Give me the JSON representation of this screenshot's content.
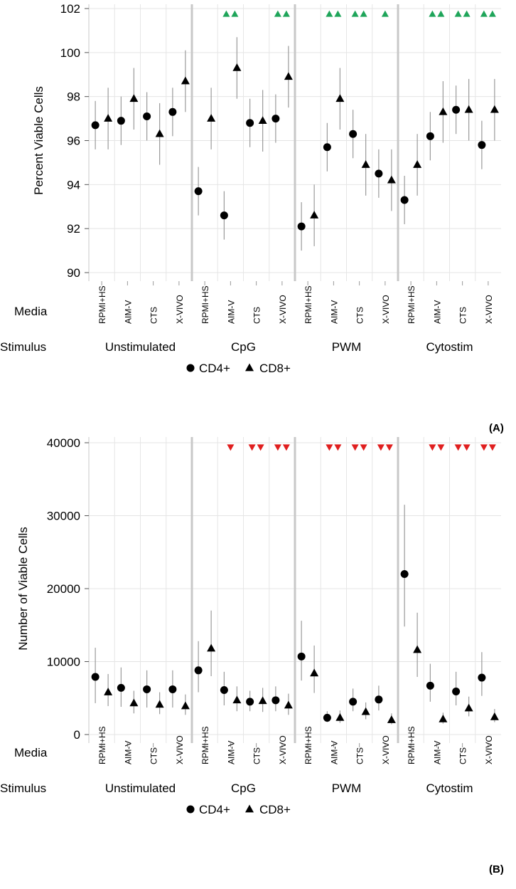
{
  "chart_data": [
    {
      "type": "scatter",
      "panel_label": "(A)",
      "ylabel": "Percent Viable Cells",
      "ylim": [
        90,
        102
      ],
      "yticks": [
        90,
        92,
        94,
        96,
        98,
        100,
        102
      ],
      "row_labels": {
        "media": "Media",
        "stimulus": "Stimulus"
      },
      "groups": [
        "Unstimulated",
        "CpG",
        "PWM",
        "Cytostim"
      ],
      "media": [
        "RPMI+HS",
        "AIM-V",
        "CTS",
        "X-VIVO"
      ],
      "legend": {
        "cd4": "CD4+",
        "cd8": "CD8+"
      },
      "series": [
        {
          "name": "CD4+",
          "marker": "circle",
          "points": [
            {
              "group": "Unstimulated",
              "media": "RPMI+HS",
              "y": 96.7,
              "err": [
                95.6,
                97.8
              ]
            },
            {
              "group": "Unstimulated",
              "media": "AIM-V",
              "y": 96.9,
              "err": [
                95.8,
                98.0
              ]
            },
            {
              "group": "Unstimulated",
              "media": "CTS",
              "y": 97.1,
              "err": [
                96.0,
                98.2
              ]
            },
            {
              "group": "Unstimulated",
              "media": "X-VIVO",
              "y": 97.3,
              "err": [
                96.2,
                98.4
              ]
            },
            {
              "group": "CpG",
              "media": "RPMI+HS",
              "y": 93.7,
              "err": [
                92.6,
                94.8
              ]
            },
            {
              "group": "CpG",
              "media": "AIM-V",
              "y": 92.6,
              "err": [
                91.5,
                93.7
              ]
            },
            {
              "group": "CpG",
              "media": "CTS",
              "y": 96.8,
              "err": [
                95.7,
                97.9
              ]
            },
            {
              "group": "CpG",
              "media": "X-VIVO",
              "y": 97.0,
              "err": [
                95.9,
                98.1
              ]
            },
            {
              "group": "PWM",
              "media": "RPMI+HS",
              "y": 92.1,
              "err": [
                91.0,
                93.2
              ]
            },
            {
              "group": "PWM",
              "media": "AIM-V",
              "y": 95.7,
              "err": [
                94.6,
                96.8
              ]
            },
            {
              "group": "PWM",
              "media": "CTS",
              "y": 96.3,
              "err": [
                95.2,
                97.4
              ]
            },
            {
              "group": "PWM",
              "media": "X-VIVO",
              "y": 94.5,
              "err": [
                93.4,
                95.6
              ]
            },
            {
              "group": "Cytostim",
              "media": "RPMI+HS",
              "y": 93.3,
              "err": [
                92.2,
                94.4
              ]
            },
            {
              "group": "Cytostim",
              "media": "AIM-V",
              "y": 96.2,
              "err": [
                95.1,
                97.3
              ]
            },
            {
              "group": "Cytostim",
              "media": "CTS",
              "y": 97.4,
              "err": [
                96.3,
                98.5
              ]
            },
            {
              "group": "Cytostim",
              "media": "X-VIVO",
              "y": 95.8,
              "err": [
                94.7,
                96.9
              ]
            }
          ]
        },
        {
          "name": "CD8+",
          "marker": "triangle",
          "points": [
            {
              "group": "Unstimulated",
              "media": "RPMI+HS",
              "y": 97.0,
              "err": [
                95.6,
                98.4
              ]
            },
            {
              "group": "Unstimulated",
              "media": "AIM-V",
              "y": 97.9,
              "err": [
                96.5,
                99.3
              ]
            },
            {
              "group": "Unstimulated",
              "media": "CTS",
              "y": 96.3,
              "err": [
                94.9,
                97.7
              ]
            },
            {
              "group": "Unstimulated",
              "media": "X-VIVO",
              "y": 98.7,
              "err": [
                97.3,
                100.1
              ]
            },
            {
              "group": "CpG",
              "media": "RPMI+HS",
              "y": 97.0,
              "err": [
                95.6,
                98.4
              ]
            },
            {
              "group": "CpG",
              "media": "AIM-V",
              "y": 99.3,
              "err": [
                97.9,
                100.7
              ]
            },
            {
              "group": "CpG",
              "media": "CTS",
              "y": 96.9,
              "err": [
                95.5,
                98.3
              ]
            },
            {
              "group": "CpG",
              "media": "X-VIVO",
              "y": 98.9,
              "err": [
                97.5,
                100.3
              ]
            },
            {
              "group": "PWM",
              "media": "RPMI+HS",
              "y": 92.6,
              "err": [
                91.2,
                94.0
              ]
            },
            {
              "group": "PWM",
              "media": "AIM-V",
              "y": 97.9,
              "err": [
                96.5,
                99.3
              ]
            },
            {
              "group": "PWM",
              "media": "CTS",
              "y": 94.9,
              "err": [
                93.5,
                96.3
              ]
            },
            {
              "group": "PWM",
              "media": "X-VIVO",
              "y": 94.2,
              "err": [
                92.8,
                95.6
              ]
            },
            {
              "group": "Cytostim",
              "media": "RPMI+HS",
              "y": 94.9,
              "err": [
                93.5,
                96.3
              ]
            },
            {
              "group": "Cytostim",
              "media": "AIM-V",
              "y": 97.3,
              "err": [
                95.9,
                98.7
              ]
            },
            {
              "group": "Cytostim",
              "media": "CTS",
              "y": 97.4,
              "err": [
                96.0,
                98.8
              ]
            },
            {
              "group": "Cytostim",
              "media": "X-VIVO",
              "y": 97.4,
              "err": [
                96.0,
                98.8
              ]
            }
          ]
        }
      ],
      "significance_markers": {
        "symbol": "up-triangle",
        "color": "#1fa55a",
        "items": [
          {
            "group": "CpG",
            "media": "AIM-V",
            "count": 2
          },
          {
            "group": "CpG",
            "media": "X-VIVO",
            "count": 2
          },
          {
            "group": "PWM",
            "media": "AIM-V",
            "count": 2
          },
          {
            "group": "PWM",
            "media": "CTS",
            "count": 2
          },
          {
            "group": "PWM",
            "media": "X-VIVO",
            "count": 1
          },
          {
            "group": "Cytostim",
            "media": "AIM-V",
            "count": 2
          },
          {
            "group": "Cytostim",
            "media": "CTS",
            "count": 2
          },
          {
            "group": "Cytostim",
            "media": "X-VIVO",
            "count": 2
          }
        ]
      }
    },
    {
      "type": "scatter",
      "panel_label": "(B)",
      "ylabel": "Number of Viable Cells",
      "ylim": [
        0,
        40000
      ],
      "yticks": [
        0,
        10000,
        20000,
        30000,
        40000
      ],
      "row_labels": {
        "media": "Media",
        "stimulus": "Stimulus"
      },
      "groups": [
        "Unstimulated",
        "CpG",
        "PWM",
        "Cytostim"
      ],
      "media": [
        "RPMI+HS",
        "AIM-V",
        "CTS",
        "X-VIVO"
      ],
      "legend": {
        "cd4": "CD4+",
        "cd8": "CD8+"
      },
      "series": [
        {
          "name": "CD4+",
          "marker": "circle",
          "points": [
            {
              "group": "Unstimulated",
              "media": "RPMI+HS",
              "y": 7900,
              "err": [
                4300,
                11900
              ]
            },
            {
              "group": "Unstimulated",
              "media": "AIM-V",
              "y": 6400,
              "err": [
                3800,
                9200
              ]
            },
            {
              "group": "Unstimulated",
              "media": "CTS",
              "y": 6200,
              "err": [
                3700,
                8800
              ]
            },
            {
              "group": "Unstimulated",
              "media": "X-VIVO",
              "y": 6200,
              "err": [
                3700,
                8800
              ]
            },
            {
              "group": "CpG",
              "media": "RPMI+HS",
              "y": 8800,
              "err": [
                5800,
                12800
              ]
            },
            {
              "group": "CpG",
              "media": "AIM-V",
              "y": 6100,
              "err": [
                4000,
                8600
              ]
            },
            {
              "group": "CpG",
              "media": "CTS",
              "y": 4500,
              "err": [
                3200,
                6000
              ]
            },
            {
              "group": "CpG",
              "media": "X-VIVO",
              "y": 4700,
              "err": [
                3200,
                6600
              ]
            },
            {
              "group": "PWM",
              "media": "RPMI+HS",
              "y": 10700,
              "err": [
                7400,
                15600
              ]
            },
            {
              "group": "PWM",
              "media": "AIM-V",
              "y": 2300,
              "err": [
                1700,
                3200
              ]
            },
            {
              "group": "PWM",
              "media": "CTS",
              "y": 4500,
              "err": [
                3200,
                6300
              ]
            },
            {
              "group": "PWM",
              "media": "X-VIVO",
              "y": 4800,
              "err": [
                3300,
                6700
              ]
            },
            {
              "group": "Cytostim",
              "media": "RPMI+HS",
              "y": 22000,
              "err": [
                14800,
                31500
              ]
            },
            {
              "group": "Cytostim",
              "media": "AIM-V",
              "y": 6700,
              "err": [
                4500,
                9700
              ]
            },
            {
              "group": "Cytostim",
              "media": "CTS",
              "y": 5900,
              "err": [
                4000,
                8600
              ]
            },
            {
              "group": "Cytostim",
              "media": "X-VIVO",
              "y": 7800,
              "err": [
                5300,
                11300
              ]
            }
          ]
        },
        {
          "name": "CD8+",
          "marker": "triangle",
          "points": [
            {
              "group": "Unstimulated",
              "media": "RPMI+HS",
              "y": 5800,
              "err": [
                3900,
                8300
              ]
            },
            {
              "group": "Unstimulated",
              "media": "AIM-V",
              "y": 4300,
              "err": [
                2900,
                6000
              ]
            },
            {
              "group": "Unstimulated",
              "media": "CTS",
              "y": 4100,
              "err": [
                2800,
                5800
              ]
            },
            {
              "group": "Unstimulated",
              "media": "X-VIVO",
              "y": 3900,
              "err": [
                2700,
                5500
              ]
            },
            {
              "group": "CpG",
              "media": "RPMI+HS",
              "y": 11800,
              "err": [
                8000,
                17000
              ]
            },
            {
              "group": "CpG",
              "media": "AIM-V",
              "y": 4700,
              "err": [
                3200,
                6600
              ]
            },
            {
              "group": "CpG",
              "media": "CTS",
              "y": 4600,
              "err": [
                3100,
                6400
              ]
            },
            {
              "group": "CpG",
              "media": "X-VIVO",
              "y": 4000,
              "err": [
                2700,
                5600
              ]
            },
            {
              "group": "PWM",
              "media": "RPMI+HS",
              "y": 8400,
              "err": [
                5700,
                12200
              ]
            },
            {
              "group": "PWM",
              "media": "AIM-V",
              "y": 2300,
              "err": [
                1600,
                3300
              ]
            },
            {
              "group": "PWM",
              "media": "CTS",
              "y": 3100,
              "err": [
                2100,
                4400
              ]
            },
            {
              "group": "PWM",
              "media": "X-VIVO",
              "y": 2000,
              "err": [
                1400,
                2900
              ]
            },
            {
              "group": "Cytostim",
              "media": "RPMI+HS",
              "y": 11600,
              "err": [
                7900,
                16700
              ]
            },
            {
              "group": "Cytostim",
              "media": "AIM-V",
              "y": 2100,
              "err": [
                1500,
                3000
              ]
            },
            {
              "group": "Cytostim",
              "media": "CTS",
              "y": 3600,
              "err": [
                2500,
                5200
              ]
            },
            {
              "group": "Cytostim",
              "media": "X-VIVO",
              "y": 2400,
              "err": [
                1700,
                3500
              ]
            }
          ]
        }
      ],
      "significance_markers": {
        "symbol": "down-triangle",
        "color": "#e01f1f",
        "items": [
          {
            "group": "CpG",
            "media": "AIM-V",
            "count": 1
          },
          {
            "group": "CpG",
            "media": "CTS",
            "count": 2
          },
          {
            "group": "CpG",
            "media": "X-VIVO",
            "count": 2
          },
          {
            "group": "PWM",
            "media": "AIM-V",
            "count": 2
          },
          {
            "group": "PWM",
            "media": "CTS",
            "count": 2
          },
          {
            "group": "PWM",
            "media": "X-VIVO",
            "count": 2
          },
          {
            "group": "Cytostim",
            "media": "AIM-V",
            "count": 2
          },
          {
            "group": "Cytostim",
            "media": "CTS",
            "count": 2
          },
          {
            "group": "Cytostim",
            "media": "X-VIVO",
            "count": 2
          }
        ]
      }
    }
  ]
}
